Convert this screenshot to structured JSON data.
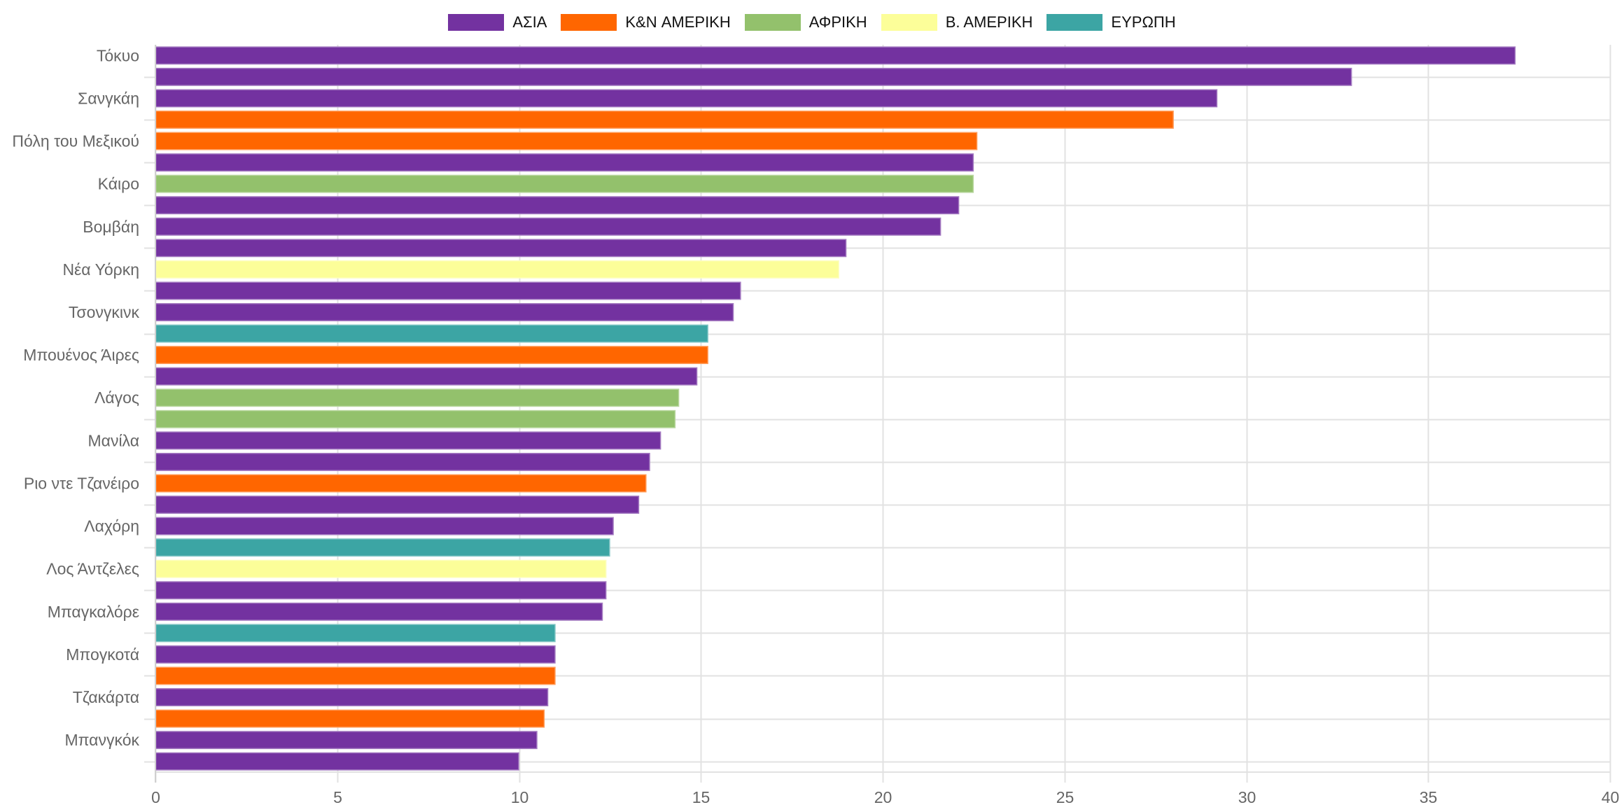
{
  "chart_data": {
    "type": "bar",
    "orientation": "horizontal",
    "title": "",
    "xlabel": "",
    "ylabel": "",
    "xlim": [
      0,
      40
    ],
    "x_ticks": [
      "0",
      "5",
      "10",
      "15",
      "20",
      "25",
      "30",
      "35",
      "40"
    ],
    "grid": true,
    "legend_position": "top",
    "legend": [
      {
        "name": "ΑΣΙΑ",
        "color": "#7332A0"
      },
      {
        "name": "K&N ΑΜΕΡΙΚΗ",
        "color": "#FF6600"
      },
      {
        "name": "ΑΦΡΙΚΗ",
        "color": "#93C16C"
      },
      {
        "name": "Β. ΑΜΕΡΙΚΗ",
        "color": "#FCFE99"
      },
      {
        "name": "ΕΥΡΩΠΗ",
        "color": "#3CA5A4"
      }
    ],
    "bars": [
      {
        "label": "Τόκυο",
        "series": 0,
        "value": 37.4
      },
      {
        "label": "",
        "series": 0,
        "value": 32.9
      },
      {
        "label": "Σανγκάη",
        "series": 0,
        "value": 29.2
      },
      {
        "label": "",
        "series": 1,
        "value": 28.0
      },
      {
        "label": "Πόλη του Μεξικού",
        "series": 1,
        "value": 22.6
      },
      {
        "label": "",
        "series": 0,
        "value": 22.5
      },
      {
        "label": "Κάιρο",
        "series": 2,
        "value": 22.5
      },
      {
        "label": "",
        "series": 0,
        "value": 22.1
      },
      {
        "label": "Βομβάη",
        "series": 0,
        "value": 21.6
      },
      {
        "label": "",
        "series": 0,
        "value": 19.0
      },
      {
        "label": "Νέα Υόρκη",
        "series": 3,
        "value": 18.8
      },
      {
        "label": "",
        "series": 0,
        "value": 16.1
      },
      {
        "label": "Τσονγκινκ",
        "series": 0,
        "value": 15.9
      },
      {
        "label": "",
        "series": 4,
        "value": 15.2
      },
      {
        "label": "Μπουένος Άιρες",
        "series": 1,
        "value": 15.2
      },
      {
        "label": "",
        "series": 0,
        "value": 14.9
      },
      {
        "label": "Λάγος",
        "series": 2,
        "value": 14.4
      },
      {
        "label": "",
        "series": 2,
        "value": 14.3
      },
      {
        "label": "Μανίλα",
        "series": 0,
        "value": 13.9
      },
      {
        "label": "",
        "series": 0,
        "value": 13.6
      },
      {
        "label": "Ριο ντε Τζανέιρο",
        "series": 1,
        "value": 13.5
      },
      {
        "label": "",
        "series": 0,
        "value": 13.3
      },
      {
        "label": "Λαχόρη",
        "series": 0,
        "value": 12.6
      },
      {
        "label": "",
        "series": 4,
        "value": 12.5
      },
      {
        "label": "Λος Άντζελες",
        "series": 3,
        "value": 12.4
      },
      {
        "label": "",
        "series": 0,
        "value": 12.4
      },
      {
        "label": "Μπαγκαλόρε",
        "series": 0,
        "value": 12.3
      },
      {
        "label": "",
        "series": 4,
        "value": 11.0
      },
      {
        "label": "Μπογκοτά",
        "series": 0,
        "value": 11.0
      },
      {
        "label": "",
        "series": 1,
        "value": 11.0
      },
      {
        "label": "Τζακάρτα",
        "series": 0,
        "value": 10.8
      },
      {
        "label": "",
        "series": 1,
        "value": 10.7
      },
      {
        "label": "Μπανγκόκ",
        "series": 0,
        "value": 10.5
      },
      {
        "label": "",
        "series": 0,
        "value": 10.0
      }
    ]
  }
}
